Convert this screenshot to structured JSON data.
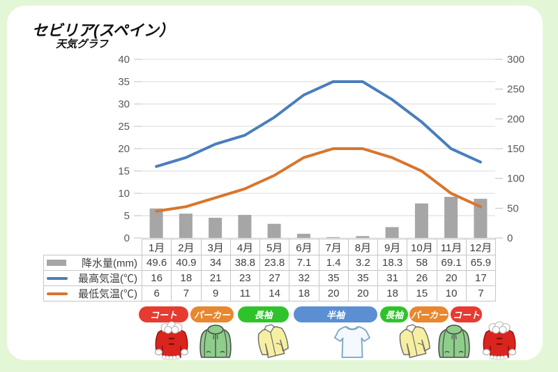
{
  "title": "セビリア(スペイン）",
  "subtitle": "天気グラフ",
  "chart_data": {
    "type": "combo-bar-line",
    "categories": [
      "1月",
      "2月",
      "3月",
      "4月",
      "5月",
      "6月",
      "7月",
      "8月",
      "9月",
      "10月",
      "11月",
      "12月"
    ],
    "series": [
      {
        "name": "降水量(mm)",
        "type": "bar",
        "axis": "right",
        "color": "#a6a6a6",
        "values": [
          49.6,
          40.9,
          34,
          38.8,
          23.8,
          7.1,
          1.4,
          3.2,
          18.3,
          58,
          69.1,
          65.9
        ]
      },
      {
        "name": "最高気温(℃)",
        "type": "line",
        "axis": "left",
        "color": "#4a7ebb",
        "values": [
          16,
          18,
          21,
          23,
          27,
          32,
          35,
          35,
          31,
          26,
          20,
          17
        ]
      },
      {
        "name": "最低気温(℃)",
        "type": "line",
        "axis": "left",
        "color": "#d9752c",
        "values": [
          6,
          7,
          9,
          11,
          14,
          18,
          20,
          20,
          18,
          15,
          10,
          7
        ]
      }
    ],
    "left_axis": {
      "min": 0,
      "max": 40,
      "step": 5,
      "ticks": [
        0,
        5,
        10,
        15,
        20,
        25,
        30,
        35,
        40
      ]
    },
    "right_axis": {
      "min": 0,
      "max": 300,
      "step": 50,
      "ticks": [
        0,
        50,
        100,
        150,
        200,
        250,
        300
      ]
    },
    "grid": "horizontal",
    "legend_position": "table-left"
  },
  "clothing": {
    "bands": [
      {
        "label": "コート",
        "color": "#e73a30"
      },
      {
        "label": "パーカー",
        "color": "#e8872e"
      },
      {
        "label": "長袖",
        "color": "#2fc32b"
      },
      {
        "label": "半袖",
        "color": "#5b8fd2"
      },
      {
        "label": "長袖",
        "color": "#2fc32b"
      },
      {
        "label": "パーカー",
        "color": "#e8872e"
      },
      {
        "label": "コート",
        "color": "#e73a30"
      }
    ],
    "icons": [
      {
        "name": "red-coat-icon",
        "type": "coat"
      },
      {
        "name": "green-hoodie-icon",
        "type": "hoodie"
      },
      {
        "name": "yellow-longsleeve-icon",
        "type": "longsleeve"
      },
      {
        "name": "white-tshirt-icon",
        "type": "tshirt"
      },
      {
        "name": "yellow-longsleeve-icon",
        "type": "longsleeve"
      },
      {
        "name": "green-hoodie-icon",
        "type": "hoodie"
      },
      {
        "name": "red-coat-icon",
        "type": "coat"
      }
    ]
  },
  "colors": {
    "page_background": "#e3f7d6",
    "card_background": "#ffffff",
    "gridline": "#d9d9d9",
    "axis_text": "#595959",
    "table_border": "#c6c6c6",
    "table_text": "#404040"
  }
}
